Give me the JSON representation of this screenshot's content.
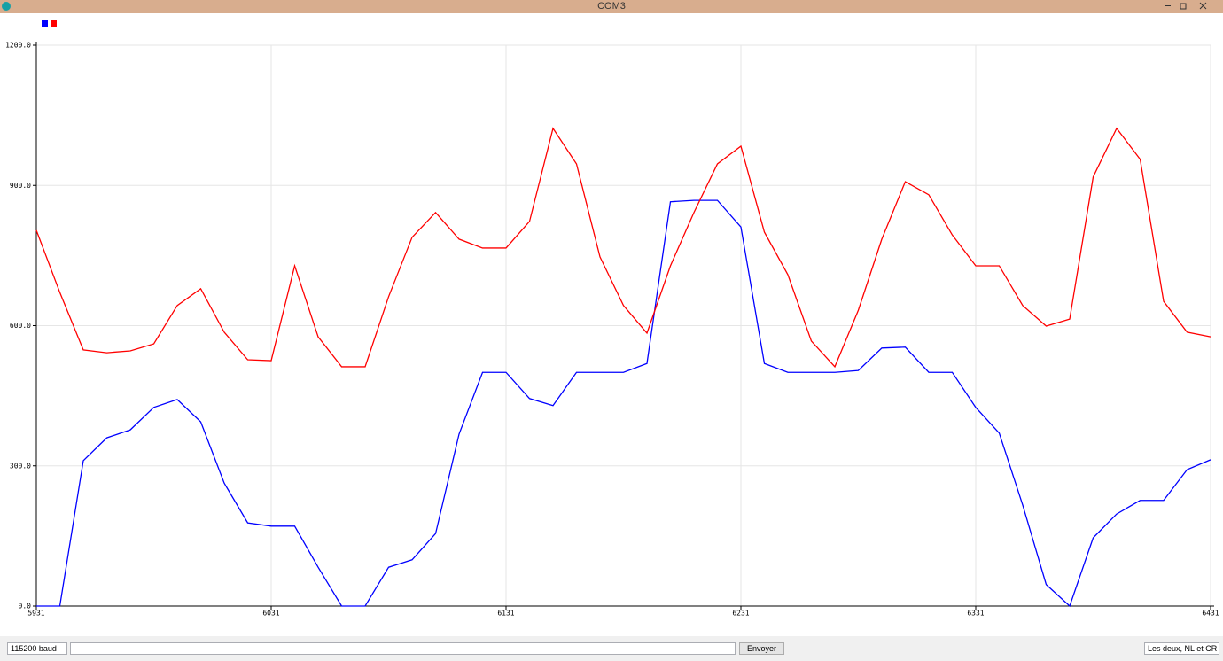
{
  "window": {
    "title": "COM3"
  },
  "chart_data": {
    "type": "line",
    "x": [
      5931,
      5941,
      5951,
      5961,
      5971,
      5981,
      5991,
      6001,
      6011,
      6021,
      6031,
      6041,
      6051,
      6061,
      6071,
      6081,
      6091,
      6101,
      6111,
      6121,
      6131,
      6141,
      6151,
      6161,
      6171,
      6181,
      6191,
      6201,
      6211,
      6221,
      6231,
      6241,
      6251,
      6261,
      6271,
      6281,
      6291,
      6301,
      6311,
      6321,
      6331,
      6341,
      6351,
      6361,
      6371,
      6381,
      6391,
      6401,
      6411,
      6421,
      6431
    ],
    "series": [
      {
        "color": "#0000ff",
        "values": [
          0,
          0,
          311,
          360,
          377,
          425,
          442,
          394,
          263,
          178,
          171,
          171,
          83,
          0,
          0,
          83,
          99,
          155,
          368,
          500,
          500,
          444,
          429,
          500,
          500,
          500,
          519,
          865,
          868,
          868,
          811,
          519,
          500,
          500,
          500,
          504,
          552,
          554,
          500,
          500,
          425,
          370,
          216,
          46,
          0,
          146,
          197,
          226,
          226,
          292,
          313
        ]
      },
      {
        "color": "#ff0000",
        "values": [
          804,
          671,
          548,
          542,
          546,
          561,
          643,
          679,
          586,
          527,
          525,
          728,
          576,
          512,
          512,
          662,
          789,
          842,
          785,
          766,
          766,
          823,
          1022,
          946,
          747,
          643,
          584,
          728,
          842,
          946,
          984,
          800,
          709,
          567,
          512,
          633,
          785,
          908,
          880,
          794,
          728,
          728,
          643,
          599,
          614,
          918,
          1022,
          956,
          652,
          586,
          576
        ]
      }
    ],
    "xlim": [
      5931,
      6431
    ],
    "xticks": [
      5931,
      6031,
      6131,
      6231,
      6331,
      6431
    ],
    "ylim": [
      0,
      1200
    ],
    "yticks": [
      {
        "value": 0,
        "label": "0.0"
      },
      {
        "value": 300,
        "label": "300.0"
      },
      {
        "value": 600,
        "label": "600.0"
      },
      {
        "value": 900,
        "label": "900.0"
      },
      {
        "value": 1200,
        "label": "1200.0"
      }
    ],
    "grid": true
  },
  "controls": {
    "baud": "115200 baud",
    "send": "Envoyer",
    "line_ending": "Les deux, NL et CR"
  }
}
